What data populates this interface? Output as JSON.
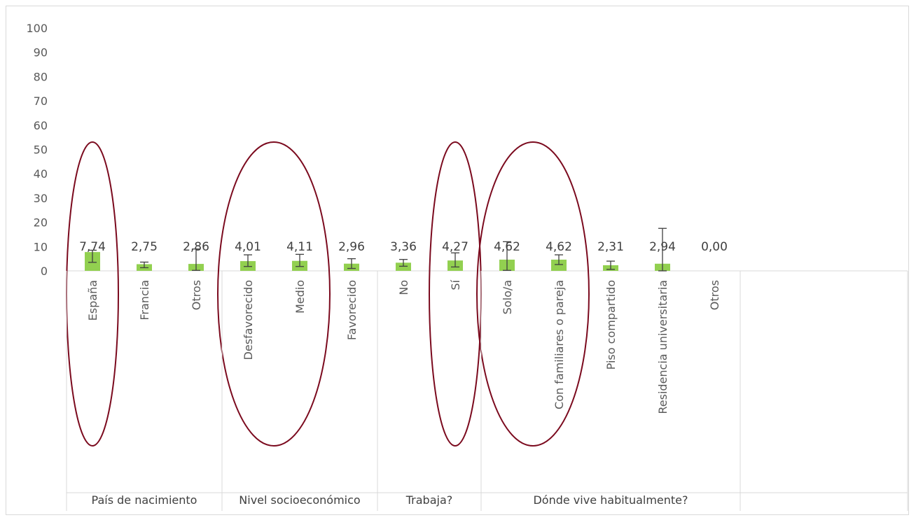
{
  "chart_data": {
    "type": "bar",
    "ylim": [
      0,
      100
    ],
    "yticks": [
      0,
      10,
      20,
      30,
      40,
      50,
      60,
      70,
      80,
      90,
      100
    ],
    "bar_color": "#92d050",
    "errorbar_color": "#404040",
    "highlight_color": "#7b0a1e",
    "grid": false,
    "groups": [
      {
        "name": "País de nacimiento",
        "categories": [
          {
            "label": "España",
            "value": 7.74,
            "display": "7,74",
            "err": [
              3.5,
              8.5
            ],
            "highlighted": true
          },
          {
            "label": "Francia",
            "value": 2.75,
            "display": "2,75",
            "err": [
              1.3,
              3.6
            ],
            "highlighted": false
          },
          {
            "label": "Otros",
            "value": 2.86,
            "display": "2,86",
            "err": [
              0.2,
              9.0
            ],
            "highlighted": false
          }
        ]
      },
      {
        "name": "Nivel socioeconómico",
        "categories": [
          {
            "label": "Desfavorecido",
            "value": 4.01,
            "display": "4,01",
            "err": [
              1.8,
              6.6
            ],
            "highlighted": true
          },
          {
            "label": "Medio",
            "value": 4.11,
            "display": "4,11",
            "err": [
              1.8,
              6.8
            ],
            "highlighted": true
          },
          {
            "label": "Favorecido",
            "value": 2.96,
            "display": "2,96",
            "err": [
              1.0,
              5.0
            ],
            "highlighted": false
          }
        ]
      },
      {
        "name": "Trabaja?",
        "categories": [
          {
            "label": "No",
            "value": 3.36,
            "display": "3,36",
            "err": [
              1.9,
              4.7
            ],
            "highlighted": false
          },
          {
            "label": "Sí",
            "value": 4.27,
            "display": "4,27",
            "err": [
              1.6,
              7.4
            ],
            "highlighted": true
          }
        ]
      },
      {
        "name": "Dónde vive habitualmente?",
        "categories": [
          {
            "label": "Solo/a",
            "value": 4.62,
            "display": "4,62",
            "err": [
              0.2,
              12.0
            ],
            "highlighted": true
          },
          {
            "label": "Con familiares o pareja",
            "value": 4.62,
            "display": "4,62",
            "err": [
              2.6,
              6.6
            ],
            "highlighted": true
          },
          {
            "label": "Piso compartido",
            "value": 2.31,
            "display": "2,31",
            "err": [
              0.6,
              4.0
            ],
            "highlighted": false
          },
          {
            "label": "Residencia universitaria",
            "value": 2.94,
            "display": "2,94",
            "err": [
              0.0,
              17.5
            ],
            "highlighted": false
          },
          {
            "label": "Otros",
            "value": 0.0,
            "display": "0,00",
            "err": null,
            "highlighted": false
          }
        ]
      }
    ]
  }
}
